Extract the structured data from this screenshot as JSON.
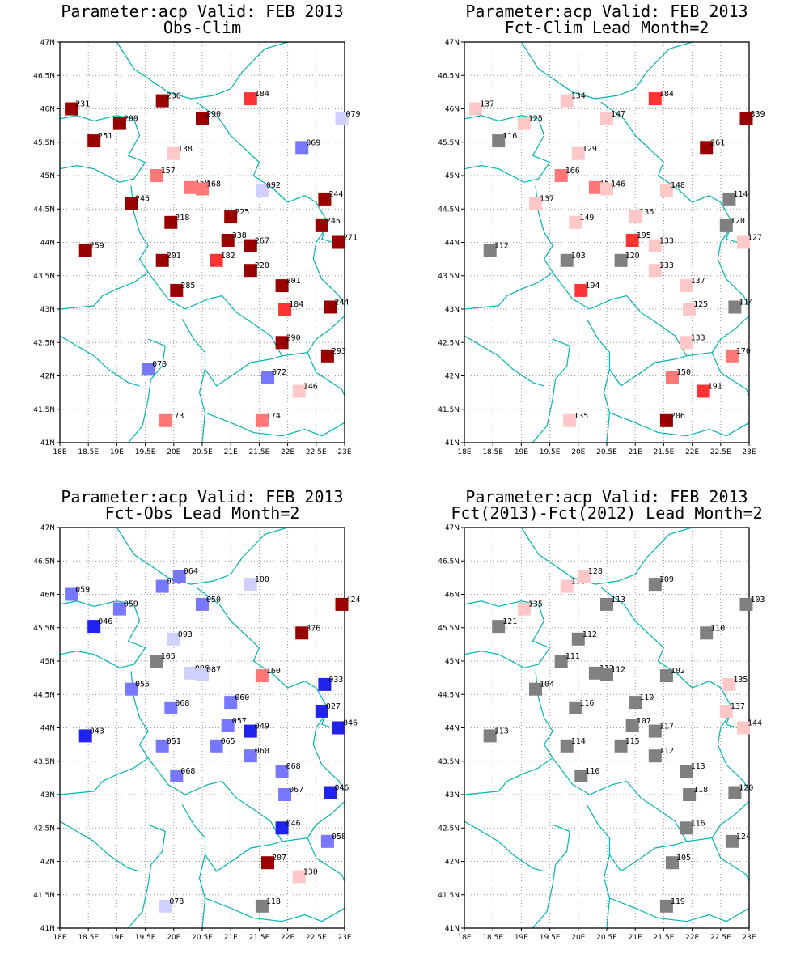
{
  "panels": [
    {
      "title": "Parameter:acp Valid: FEB 2013",
      "subtitle": "Obs-Clim",
      "stations": [
        {
          "lon": 18.2,
          "lat": 46.0,
          "label": "231",
          "color": "#990000"
        },
        {
          "lon": 19.8,
          "lat": 46.12,
          "label": "236",
          "color": "#990000"
        },
        {
          "lon": 21.35,
          "lat": 46.15,
          "label": "184",
          "color": "#ff3333"
        },
        {
          "lon": 22.95,
          "lat": 45.85,
          "label": "079",
          "color": "#d0d0ff"
        },
        {
          "lon": 19.05,
          "lat": 45.78,
          "label": "209",
          "color": "#990000"
        },
        {
          "lon": 20.5,
          "lat": 45.85,
          "label": "290",
          "color": "#990000"
        },
        {
          "lon": 18.6,
          "lat": 45.52,
          "label": "251",
          "color": "#990000"
        },
        {
          "lon": 20.0,
          "lat": 45.33,
          "label": "138",
          "color": "#ffc8c8"
        },
        {
          "lon": 22.25,
          "lat": 45.42,
          "label": "069",
          "color": "#7777ff"
        },
        {
          "lon": 19.7,
          "lat": 45.0,
          "label": "157",
          "color": "#ff7777"
        },
        {
          "lon": 20.3,
          "lat": 44.82,
          "label": "150",
          "color": "#ff7777"
        },
        {
          "lon": 20.5,
          "lat": 44.8,
          "label": "168",
          "color": "#ff7777"
        },
        {
          "lon": 21.55,
          "lat": 44.78,
          "label": "092",
          "color": "#d0d0ff"
        },
        {
          "lon": 19.25,
          "lat": 44.58,
          "label": "245",
          "color": "#990000"
        },
        {
          "lon": 22.65,
          "lat": 44.65,
          "label": "244",
          "color": "#990000"
        },
        {
          "lon": 19.95,
          "lat": 44.3,
          "label": "218",
          "color": "#990000"
        },
        {
          "lon": 21.0,
          "lat": 44.38,
          "label": "225",
          "color": "#990000"
        },
        {
          "lon": 22.6,
          "lat": 44.25,
          "label": "245",
          "color": "#990000"
        },
        {
          "lon": 18.45,
          "lat": 43.88,
          "label": "259",
          "color": "#990000"
        },
        {
          "lon": 20.95,
          "lat": 44.03,
          "label": "338",
          "color": "#990000"
        },
        {
          "lon": 21.35,
          "lat": 43.95,
          "label": "267",
          "color": "#990000"
        },
        {
          "lon": 22.9,
          "lat": 44.0,
          "label": "271",
          "color": "#990000"
        },
        {
          "lon": 19.8,
          "lat": 43.73,
          "label": "201",
          "color": "#990000"
        },
        {
          "lon": 20.75,
          "lat": 43.73,
          "label": "182",
          "color": "#ff3333"
        },
        {
          "lon": 21.35,
          "lat": 43.58,
          "label": "220",
          "color": "#990000"
        },
        {
          "lon": 20.05,
          "lat": 43.28,
          "label": "285",
          "color": "#990000"
        },
        {
          "lon": 21.9,
          "lat": 43.35,
          "label": "201",
          "color": "#990000"
        },
        {
          "lon": 21.95,
          "lat": 43.0,
          "label": "184",
          "color": "#ff3333"
        },
        {
          "lon": 22.75,
          "lat": 43.03,
          "label": "244",
          "color": "#990000"
        },
        {
          "lon": 21.9,
          "lat": 42.5,
          "label": "290",
          "color": "#990000"
        },
        {
          "lon": 22.7,
          "lat": 42.3,
          "label": "293",
          "color": "#990000"
        },
        {
          "lon": 19.55,
          "lat": 42.1,
          "label": "070",
          "color": "#7777ff"
        },
        {
          "lon": 21.65,
          "lat": 41.98,
          "label": "072",
          "color": "#7777ff"
        },
        {
          "lon": 22.2,
          "lat": 41.77,
          "label": "146",
          "color": "#ffc8c8"
        },
        {
          "lon": 19.85,
          "lat": 41.33,
          "label": "173",
          "color": "#ff7777"
        },
        {
          "lon": 21.55,
          "lat": 41.33,
          "label": "174",
          "color": "#ff7777"
        }
      ]
    },
    {
      "title": "Parameter:acp Valid: FEB 2013",
      "subtitle": "Fct-Clim Lead Month=2",
      "stations": [
        {
          "lon": 18.2,
          "lat": 46.0,
          "label": "137",
          "color": "#ffc8c8"
        },
        {
          "lon": 19.8,
          "lat": 46.12,
          "label": "134",
          "color": "#ffc8c8"
        },
        {
          "lon": 21.35,
          "lat": 46.15,
          "label": "184",
          "color": "#ff3333"
        },
        {
          "lon": 22.95,
          "lat": 45.85,
          "label": "339",
          "color": "#990000"
        },
        {
          "lon": 19.05,
          "lat": 45.78,
          "label": "125",
          "color": "#ffc8c8"
        },
        {
          "lon": 20.5,
          "lat": 45.85,
          "label": "147",
          "color": "#ffc8c8"
        },
        {
          "lon": 18.6,
          "lat": 45.52,
          "label": "116",
          "color": "#808080"
        },
        {
          "lon": 20.0,
          "lat": 45.33,
          "label": "129",
          "color": "#ffc8c8"
        },
        {
          "lon": 22.25,
          "lat": 45.42,
          "label": "261",
          "color": "#990000"
        },
        {
          "lon": 19.7,
          "lat": 45.0,
          "label": "166",
          "color": "#ff7777"
        },
        {
          "lon": 20.3,
          "lat": 44.82,
          "label": "157",
          "color": "#ff7777"
        },
        {
          "lon": 20.5,
          "lat": 44.8,
          "label": "146",
          "color": "#ffc8c8"
        },
        {
          "lon": 21.55,
          "lat": 44.78,
          "label": "148",
          "color": "#ffc8c8"
        },
        {
          "lon": 19.25,
          "lat": 44.58,
          "label": "137",
          "color": "#ffc8c8"
        },
        {
          "lon": 22.65,
          "lat": 44.65,
          "label": "114",
          "color": "#808080"
        },
        {
          "lon": 19.95,
          "lat": 44.3,
          "label": "149",
          "color": "#ffc8c8"
        },
        {
          "lon": 21.0,
          "lat": 44.38,
          "label": "136",
          "color": "#ffc8c8"
        },
        {
          "lon": 22.6,
          "lat": 44.25,
          "label": "120",
          "color": "#808080"
        },
        {
          "lon": 18.45,
          "lat": 43.88,
          "label": "112",
          "color": "#808080"
        },
        {
          "lon": 20.95,
          "lat": 44.03,
          "label": "195",
          "color": "#ff3333"
        },
        {
          "lon": 21.35,
          "lat": 43.95,
          "label": "133",
          "color": "#ffc8c8"
        },
        {
          "lon": 22.9,
          "lat": 44.0,
          "label": "127",
          "color": "#ffc8c8"
        },
        {
          "lon": 19.8,
          "lat": 43.73,
          "label": "103",
          "color": "#808080"
        },
        {
          "lon": 20.75,
          "lat": 43.73,
          "label": "120",
          "color": "#808080"
        },
        {
          "lon": 21.35,
          "lat": 43.58,
          "label": "133",
          "color": "#ffc8c8"
        },
        {
          "lon": 20.05,
          "lat": 43.28,
          "label": "194",
          "color": "#ff3333"
        },
        {
          "lon": 21.9,
          "lat": 43.35,
          "label": "137",
          "color": "#ffc8c8"
        },
        {
          "lon": 21.95,
          "lat": 43.0,
          "label": "125",
          "color": "#ffc8c8"
        },
        {
          "lon": 22.75,
          "lat": 43.03,
          "label": "114",
          "color": "#808080"
        },
        {
          "lon": 21.9,
          "lat": 42.5,
          "label": "133",
          "color": "#ffc8c8"
        },
        {
          "lon": 22.7,
          "lat": 42.3,
          "label": "170",
          "color": "#ff7777"
        },
        {
          "lon": 21.65,
          "lat": 41.98,
          "label": "150",
          "color": "#ff7777"
        },
        {
          "lon": 22.2,
          "lat": 41.77,
          "label": "191",
          "color": "#ff3333"
        },
        {
          "lon": 19.85,
          "lat": 41.33,
          "label": "135",
          "color": "#ffc8c8"
        },
        {
          "lon": 21.55,
          "lat": 41.33,
          "label": "206",
          "color": "#990000"
        }
      ]
    },
    {
      "title": "Parameter:acp Valid: FEB 2013",
      "subtitle": "Fct-Obs Lead Month=2",
      "stations": [
        {
          "lon": 18.2,
          "lat": 46.0,
          "label": "059",
          "color": "#7777ff"
        },
        {
          "lon": 19.8,
          "lat": 46.12,
          "label": "056",
          "color": "#7777ff"
        },
        {
          "lon": 20.1,
          "lat": 46.27,
          "label": "064",
          "color": "#7777ff"
        },
        {
          "lon": 21.35,
          "lat": 46.15,
          "label": "100",
          "color": "#d0d0ff"
        },
        {
          "lon": 22.95,
          "lat": 45.85,
          "label": "424",
          "color": "#990000"
        },
        {
          "lon": 19.05,
          "lat": 45.78,
          "label": "059",
          "color": "#7777ff"
        },
        {
          "lon": 20.5,
          "lat": 45.85,
          "label": "050",
          "color": "#7777ff"
        },
        {
          "lon": 18.6,
          "lat": 45.52,
          "label": "046",
          "color": "#2222ee"
        },
        {
          "lon": 20.0,
          "lat": 45.33,
          "label": "093",
          "color": "#d0d0ff"
        },
        {
          "lon": 22.25,
          "lat": 45.42,
          "label": "376",
          "color": "#990000"
        },
        {
          "lon": 19.7,
          "lat": 45.0,
          "label": "105",
          "color": "#808080"
        },
        {
          "lon": 20.3,
          "lat": 44.82,
          "label": "096",
          "color": "#d0d0ff"
        },
        {
          "lon": 20.5,
          "lat": 44.8,
          "label": "087",
          "color": "#d0d0ff"
        },
        {
          "lon": 21.55,
          "lat": 44.78,
          "label": "160",
          "color": "#ff7777"
        },
        {
          "lon": 19.25,
          "lat": 44.58,
          "label": "055",
          "color": "#7777ff"
        },
        {
          "lon": 22.65,
          "lat": 44.65,
          "label": "033",
          "color": "#2222ee"
        },
        {
          "lon": 19.95,
          "lat": 44.3,
          "label": "068",
          "color": "#7777ff"
        },
        {
          "lon": 21.0,
          "lat": 44.38,
          "label": "060",
          "color": "#7777ff"
        },
        {
          "lon": 22.6,
          "lat": 44.25,
          "label": "027",
          "color": "#2222ee"
        },
        {
          "lon": 18.45,
          "lat": 43.88,
          "label": "043",
          "color": "#2222ee"
        },
        {
          "lon": 20.95,
          "lat": 44.03,
          "label": "057",
          "color": "#7777ff"
        },
        {
          "lon": 21.35,
          "lat": 43.95,
          "label": "049",
          "color": "#2222ee"
        },
        {
          "lon": 22.9,
          "lat": 44.0,
          "label": "046",
          "color": "#2222ee"
        },
        {
          "lon": 19.8,
          "lat": 43.73,
          "label": "051",
          "color": "#7777ff"
        },
        {
          "lon": 20.75,
          "lat": 43.73,
          "label": "065",
          "color": "#7777ff"
        },
        {
          "lon": 21.35,
          "lat": 43.58,
          "label": "060",
          "color": "#7777ff"
        },
        {
          "lon": 20.05,
          "lat": 43.28,
          "label": "068",
          "color": "#7777ff"
        },
        {
          "lon": 21.9,
          "lat": 43.35,
          "label": "068",
          "color": "#7777ff"
        },
        {
          "lon": 21.95,
          "lat": 43.0,
          "label": "067",
          "color": "#7777ff"
        },
        {
          "lon": 22.75,
          "lat": 43.03,
          "label": "046",
          "color": "#2222ee"
        },
        {
          "lon": 21.9,
          "lat": 42.5,
          "label": "046",
          "color": "#2222ee"
        },
        {
          "lon": 22.7,
          "lat": 42.3,
          "label": "058",
          "color": "#7777ff"
        },
        {
          "lon": 21.65,
          "lat": 41.98,
          "label": "207",
          "color": "#990000"
        },
        {
          "lon": 22.2,
          "lat": 41.77,
          "label": "130",
          "color": "#ffc8c8"
        },
        {
          "lon": 19.85,
          "lat": 41.33,
          "label": "078",
          "color": "#d0d0ff"
        },
        {
          "lon": 21.55,
          "lat": 41.33,
          "label": "118",
          "color": "#808080"
        }
      ]
    },
    {
      "title": "Parameter:acp Valid: FEB 2013",
      "subtitle": "Fct(2013)-Fct(2012) Lead Month=2",
      "stations": [
        {
          "lon": 19.8,
          "lat": 46.12,
          "label": "130",
          "color": "#ffc8c8"
        },
        {
          "lon": 20.1,
          "lat": 46.27,
          "label": "128",
          "color": "#ffc8c8"
        },
        {
          "lon": 21.35,
          "lat": 46.15,
          "label": "109",
          "color": "#808080"
        },
        {
          "lon": 22.95,
          "lat": 45.85,
          "label": "103",
          "color": "#808080"
        },
        {
          "lon": 19.05,
          "lat": 45.78,
          "label": "135",
          "color": "#ffc8c8"
        },
        {
          "lon": 20.5,
          "lat": 45.85,
          "label": "113",
          "color": "#808080"
        },
        {
          "lon": 18.6,
          "lat": 45.52,
          "label": "121",
          "color": "#808080"
        },
        {
          "lon": 20.0,
          "lat": 45.33,
          "label": "112",
          "color": "#808080"
        },
        {
          "lon": 22.25,
          "lat": 45.42,
          "label": "110",
          "color": "#808080"
        },
        {
          "lon": 19.7,
          "lat": 45.0,
          "label": "111",
          "color": "#808080"
        },
        {
          "lon": 20.3,
          "lat": 44.82,
          "label": "112",
          "color": "#808080"
        },
        {
          "lon": 20.5,
          "lat": 44.8,
          "label": "112",
          "color": "#808080"
        },
        {
          "lon": 21.55,
          "lat": 44.78,
          "label": "102",
          "color": "#808080"
        },
        {
          "lon": 19.25,
          "lat": 44.58,
          "label": "104",
          "color": "#808080"
        },
        {
          "lon": 22.65,
          "lat": 44.65,
          "label": "135",
          "color": "#ffc8c8"
        },
        {
          "lon": 19.95,
          "lat": 44.3,
          "label": "116",
          "color": "#808080"
        },
        {
          "lon": 21.0,
          "lat": 44.38,
          "label": "110",
          "color": "#808080"
        },
        {
          "lon": 22.6,
          "lat": 44.25,
          "label": "137",
          "color": "#ffc8c8"
        },
        {
          "lon": 18.45,
          "lat": 43.88,
          "label": "113",
          "color": "#808080"
        },
        {
          "lon": 20.95,
          "lat": 44.03,
          "label": "107",
          "color": "#808080"
        },
        {
          "lon": 21.35,
          "lat": 43.95,
          "label": "117",
          "color": "#808080"
        },
        {
          "lon": 22.9,
          "lat": 44.0,
          "label": "144",
          "color": "#ffc8c8"
        },
        {
          "lon": 19.8,
          "lat": 43.73,
          "label": "114",
          "color": "#808080"
        },
        {
          "lon": 20.75,
          "lat": 43.73,
          "label": "115",
          "color": "#808080"
        },
        {
          "lon": 21.35,
          "lat": 43.58,
          "label": "112",
          "color": "#808080"
        },
        {
          "lon": 20.05,
          "lat": 43.28,
          "label": "110",
          "color": "#808080"
        },
        {
          "lon": 21.9,
          "lat": 43.35,
          "label": "113",
          "color": "#808080"
        },
        {
          "lon": 21.95,
          "lat": 43.0,
          "label": "118",
          "color": "#808080"
        },
        {
          "lon": 22.75,
          "lat": 43.03,
          "label": "120",
          "color": "#808080"
        },
        {
          "lon": 21.9,
          "lat": 42.5,
          "label": "116",
          "color": "#808080"
        },
        {
          "lon": 22.7,
          "lat": 42.3,
          "label": "124",
          "color": "#808080"
        },
        {
          "lon": 21.65,
          "lat": 41.98,
          "label": "105",
          "color": "#808080"
        },
        {
          "lon": 21.55,
          "lat": 41.33,
          "label": "119",
          "color": "#808080"
        }
      ]
    }
  ],
  "axes": {
    "lon_ticks": [
      "18E",
      "18.5E",
      "19E",
      "19.5E",
      "20E",
      "20.5E",
      "21E",
      "21.5E",
      "22E",
      "22.5E",
      "23E"
    ],
    "lat_ticks": [
      "41N",
      "41.5N",
      "42N",
      "42.5N",
      "43N",
      "43.5N",
      "44N",
      "44.5N",
      "45N",
      "45.5N",
      "46N",
      "46.5N",
      "47N"
    ],
    "lon_range": [
      18,
      23
    ],
    "lat_range": [
      41,
      47
    ],
    "grid": true
  },
  "colors": {
    "border": "#00b4b4",
    "grid": "#999999"
  }
}
